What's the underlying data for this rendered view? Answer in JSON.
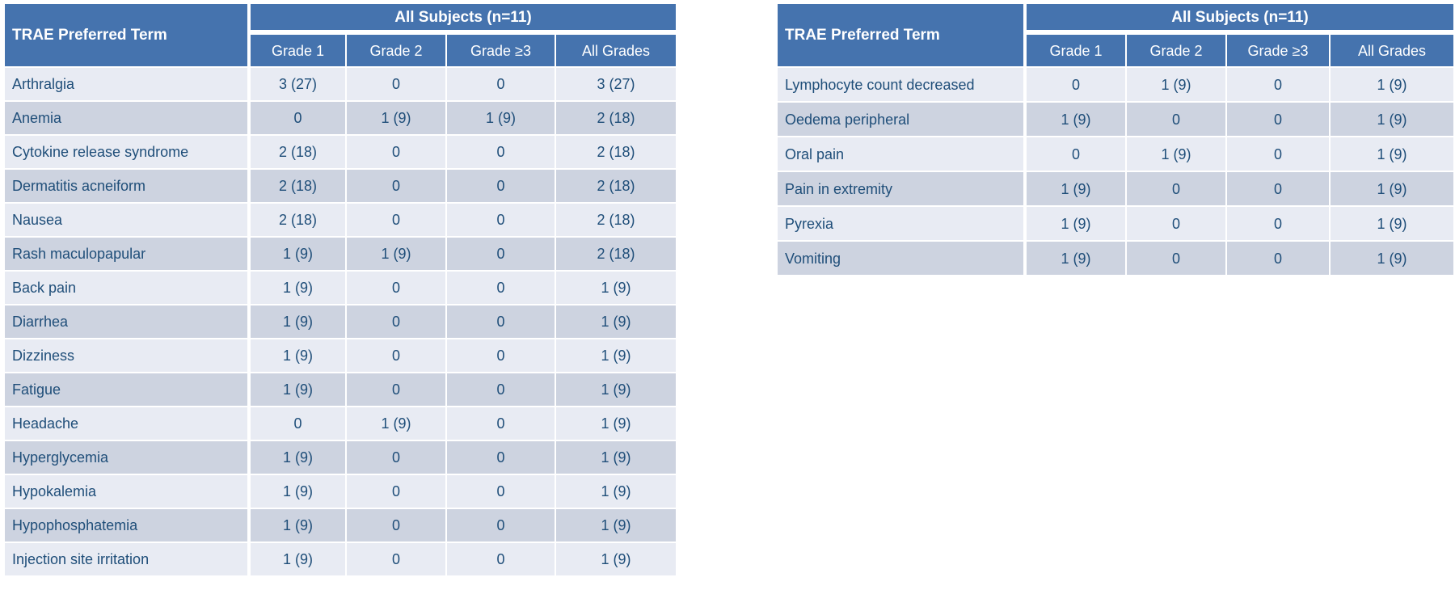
{
  "colors": {
    "header_bg": "#4573AE",
    "header_text": "#FFFFFF",
    "row_light": "#E8EBF3",
    "row_dark": "#CDD3E0",
    "cell_text": "#1F4E79",
    "page_bg": "#FFFFFF"
  },
  "tables": [
    {
      "term_header": "TRAE Preferred Term",
      "group_header": "All Subjects (n=11)",
      "columns": [
        "Grade 1",
        "Grade 2",
        "Grade ≥3",
        "All Grades"
      ],
      "rows": [
        {
          "term": "Arthralgia",
          "values": [
            "3 (27)",
            "0",
            "0",
            "3 (27)"
          ]
        },
        {
          "term": "Anemia",
          "values": [
            "0",
            "1 (9)",
            "1 (9)",
            "2 (18)"
          ]
        },
        {
          "term": "Cytokine release syndrome",
          "values": [
            "2 (18)",
            "0",
            "0",
            "2 (18)"
          ]
        },
        {
          "term": "Dermatitis acneiform",
          "values": [
            "2 (18)",
            "0",
            "0",
            "2 (18)"
          ]
        },
        {
          "term": "Nausea",
          "values": [
            "2 (18)",
            "0",
            "0",
            "2 (18)"
          ]
        },
        {
          "term": "Rash maculopapular",
          "values": [
            "1 (9)",
            "1 (9)",
            "0",
            "2 (18)"
          ]
        },
        {
          "term": "Back pain",
          "values": [
            "1 (9)",
            "0",
            "0",
            "1 (9)"
          ]
        },
        {
          "term": "Diarrhea",
          "values": [
            "1 (9)",
            "0",
            "0",
            "1 (9)"
          ]
        },
        {
          "term": "Dizziness",
          "values": [
            "1 (9)",
            "0",
            "0",
            "1 (9)"
          ]
        },
        {
          "term": "Fatigue",
          "values": [
            "1 (9)",
            "0",
            "0",
            "1 (9)"
          ]
        },
        {
          "term": "Headache",
          "values": [
            "0",
            "1 (9)",
            "0",
            "1 (9)"
          ]
        },
        {
          "term": "Hyperglycemia",
          "values": [
            "1 (9)",
            "0",
            "0",
            "1 (9)"
          ]
        },
        {
          "term": "Hypokalemia",
          "values": [
            "1 (9)",
            "0",
            "0",
            "1 (9)"
          ]
        },
        {
          "term": "Hypophosphatemia",
          "values": [
            "1 (9)",
            "0",
            "0",
            "1 (9)"
          ]
        },
        {
          "term": "Injection site irritation",
          "values": [
            "1 (9)",
            "0",
            "0",
            "1 (9)"
          ]
        }
      ]
    },
    {
      "term_header": "TRAE Preferred Term",
      "group_header": "All Subjects (n=11)",
      "columns": [
        "Grade 1",
        "Grade 2",
        "Grade ≥3",
        "All Grades"
      ],
      "rows": [
        {
          "term": "Lymphocyte count decreased",
          "values": [
            "0",
            "1 (9)",
            "0",
            "1 (9)"
          ]
        },
        {
          "term": "Oedema peripheral",
          "values": [
            "1 (9)",
            "0",
            "0",
            "1 (9)"
          ]
        },
        {
          "term": "Oral pain",
          "values": [
            "0",
            "1 (9)",
            "0",
            "1 (9)"
          ]
        },
        {
          "term": "Pain in extremity",
          "values": [
            "1 (9)",
            "0",
            "0",
            "1 (9)"
          ]
        },
        {
          "term": "Pyrexia",
          "values": [
            "1 (9)",
            "0",
            "0",
            "1 (9)"
          ]
        },
        {
          "term": "Vomiting",
          "values": [
            "1 (9)",
            "0",
            "0",
            "1 (9)"
          ]
        }
      ]
    }
  ]
}
